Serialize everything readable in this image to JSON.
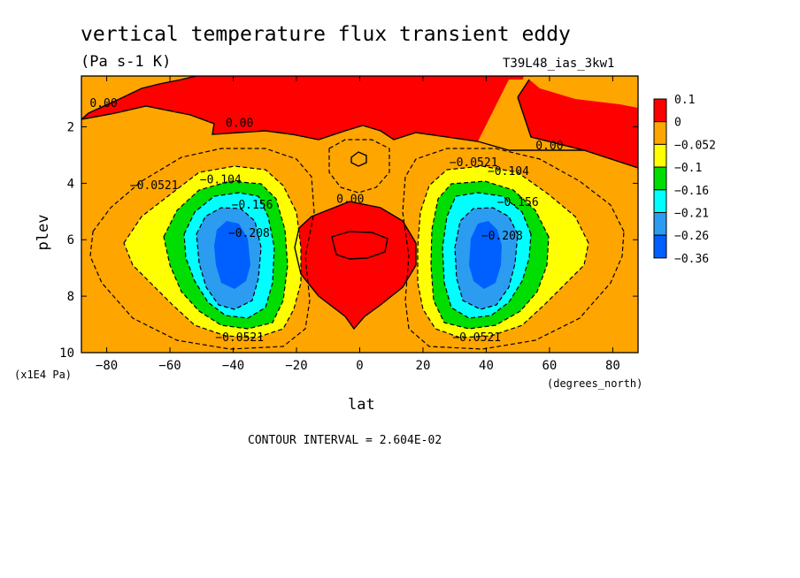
{
  "chart_data": {
    "type": "contour",
    "title": "vertical temperature flux transient eddy",
    "units": "(Pa s-1 K)",
    "run_label": "T39L48_ias_3kw1",
    "xlabel": "lat",
    "ylabel": "plev",
    "x_units_label": "(degrees_north)",
    "y_units_label": "(x1E4 Pa)",
    "xlim": [
      -88,
      88
    ],
    "ylim": [
      10,
      0.2
    ],
    "x_ticks": [
      -80,
      -60,
      -40,
      -20,
      0,
      20,
      40,
      60,
      80
    ],
    "x_tick_labels": [
      "−80",
      "−60",
      "−40",
      "−20",
      "0",
      "20",
      "40",
      "60",
      "80"
    ],
    "y_ticks": [
      2,
      4,
      6,
      8,
      10
    ],
    "y_tick_labels": [
      "2",
      "4",
      "6",
      "8",
      "10"
    ],
    "colors": {
      "pos": "#ff0000",
      "zero": "#ffa500",
      "l052": "#ffff00",
      "l10": "#00dd00",
      "l16": "#00ffff",
      "l21": "#2b9cf0",
      "l26": "#0060ff",
      "line": "#000000"
    },
    "legend": {
      "labels": [
        "0.1",
        "0",
        "−0.052",
        "−0.1",
        "−0.16",
        "−0.21",
        "−0.26",
        "−0.36"
      ],
      "colors": [
        "#ff0000",
        "#ffa500",
        "#ffff00",
        "#00dd00",
        "#00ffff",
        "#2b9cf0",
        "#0060ff"
      ]
    },
    "contour_labels": [
      {
        "text": "0.00",
        "lat": -81,
        "p": 1.3
      },
      {
        "text": "0.00",
        "lat": -38,
        "p": 2.0
      },
      {
        "text": "0.00",
        "lat": 60,
        "p": 2.8
      },
      {
        "text": "0.00",
        "lat": -3,
        "p": 4.7
      },
      {
        "text": "−0.0521",
        "lat": -65,
        "p": 4.2
      },
      {
        "text": "−0.104",
        "lat": -44,
        "p": 4.0
      },
      {
        "text": "−0.156",
        "lat": -34,
        "p": 4.9
      },
      {
        "text": "−0.208",
        "lat": -35,
        "p": 5.9
      },
      {
        "text": "−0.0521",
        "lat": 36,
        "p": 3.4
      },
      {
        "text": "−0.104",
        "lat": 47,
        "p": 3.7
      },
      {
        "text": "−0.156",
        "lat": 50,
        "p": 4.8
      },
      {
        "text": "−0.208",
        "lat": 45,
        "p": 6.0
      },
      {
        "text": "−0.0521",
        "lat": -38,
        "p": 9.6
      },
      {
        "text": "−0.0521",
        "lat": 37,
        "p": 9.6
      }
    ],
    "contour_interval_label": "CONTOUR INTERVAL = 2.604E-02"
  }
}
